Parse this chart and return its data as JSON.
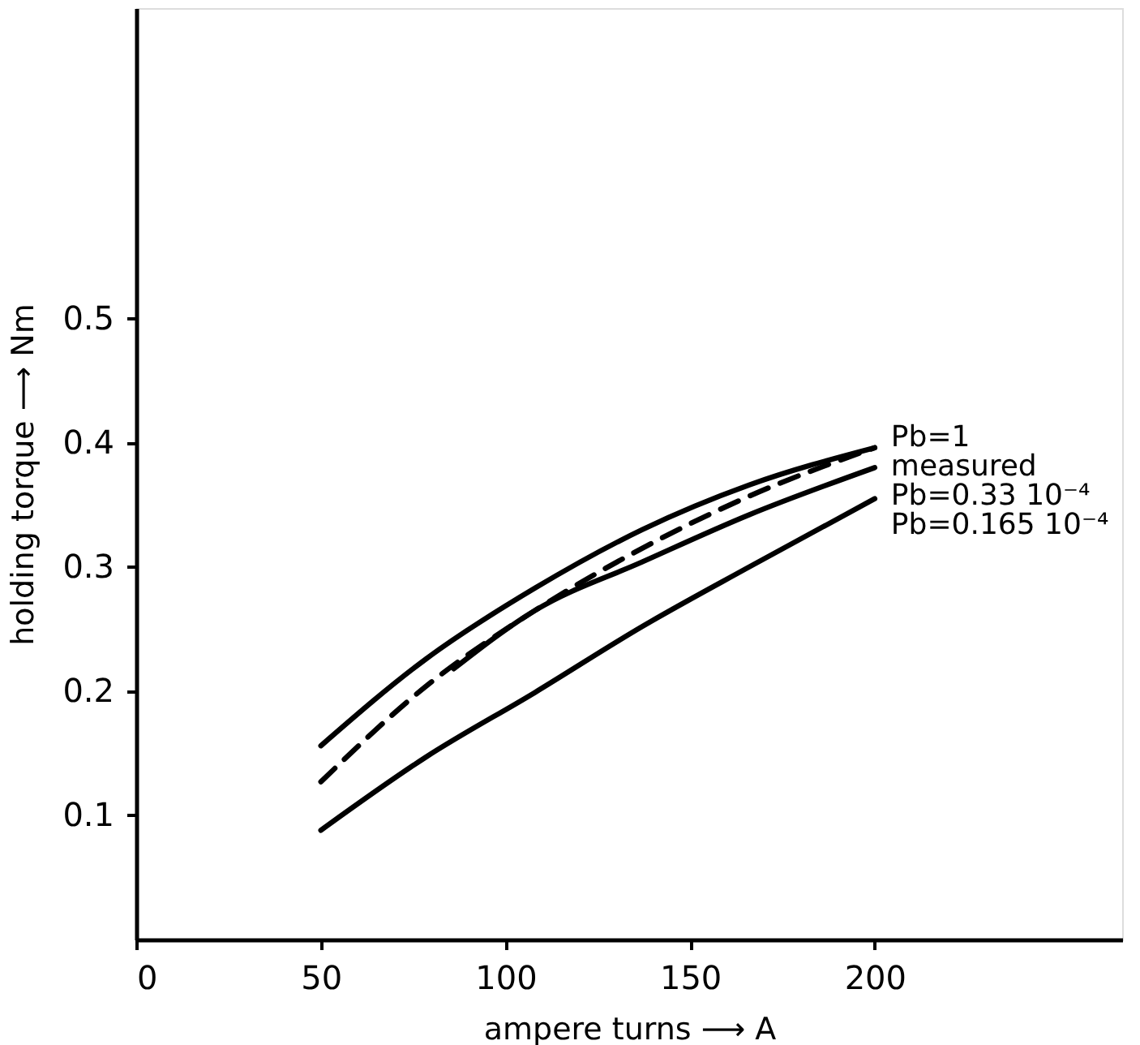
{
  "chart_data": {
    "type": "line",
    "xlabel": "ampere turns ⟶ A",
    "ylabel": "holding torque ⟶ Nm",
    "xlim": [
      0,
      267
    ],
    "ylim": [
      0,
      0.75
    ],
    "xticks": [
      0,
      50,
      100,
      150,
      200
    ],
    "yticks": [
      0.1,
      0.2,
      0.3,
      0.4,
      0.5
    ],
    "grid": false,
    "marker": "none",
    "series": [
      {
        "name": "Pb=1",
        "color": "#000000",
        "line_style": "solid",
        "x": [
          50,
          78.5,
          108,
          137,
          166,
          200
        ],
        "values": [
          0.156,
          0.226,
          0.283,
          0.33,
          0.366,
          0.396
        ]
      },
      {
        "name": "measured",
        "color": "#000000",
        "line_style": "dashed",
        "x": [
          50,
          78.5,
          108,
          137,
          166,
          200
        ],
        "values": [
          0.127,
          0.204,
          0.265,
          0.315,
          0.357,
          0.396
        ]
      },
      {
        "name": "Pb=0.33 10⁻⁴",
        "color": "#000000",
        "line_style": "solid",
        "x": [
          86,
          108,
          137,
          166,
          200
        ],
        "values": [
          0.218,
          0.265,
          0.304,
          0.342,
          0.38
        ]
      },
      {
        "name": "Pb=0.165 10⁻⁴",
        "color": "#000000",
        "line_style": "solid",
        "x": [
          50,
          78.5,
          108,
          137,
          166,
          200
        ],
        "values": [
          0.088,
          0.147,
          0.199,
          0.252,
          0.3,
          0.355
        ]
      }
    ]
  }
}
